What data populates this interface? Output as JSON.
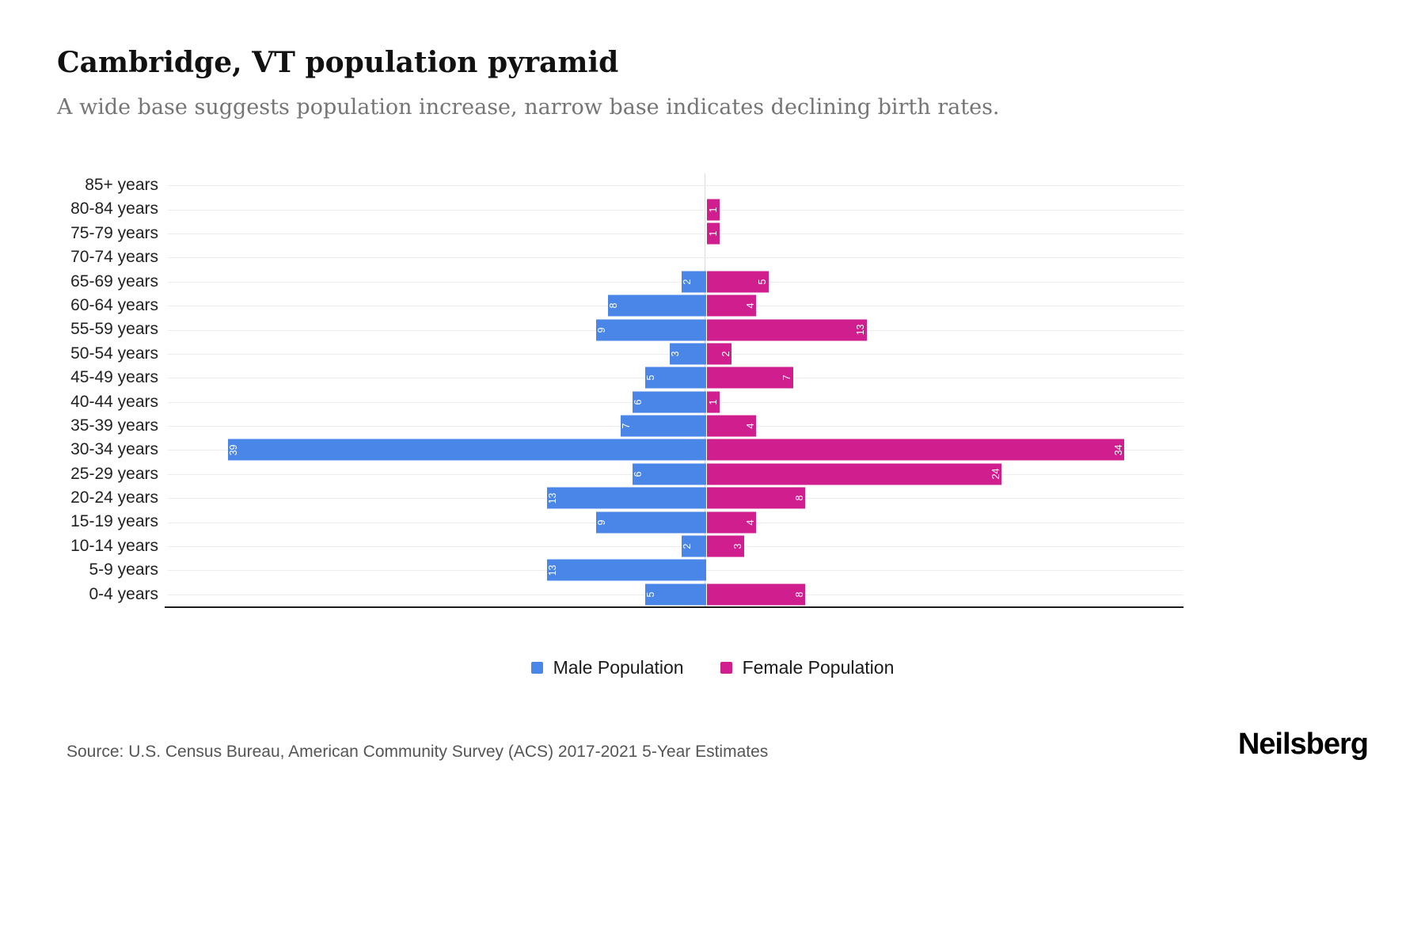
{
  "chart_data": {
    "type": "bar",
    "subtype": "population-pyramid",
    "orientation": "horizontal",
    "title": "Cambridge, VT population pyramid",
    "subtitle": "A wide base suggests population increase, narrow base indicates declining birth rates.",
    "categories": [
      "85+ years",
      "80-84 years",
      "75-79 years",
      "70-74 years",
      "65-69 years",
      "60-64 years",
      "55-59 years",
      "50-54 years",
      "45-49 years",
      "40-44 years",
      "35-39 years",
      "30-34 years",
      "25-29 years",
      "20-24 years",
      "15-19 years",
      "10-14 years",
      "5-9 years",
      "0-4 years"
    ],
    "series": [
      {
        "name": "Male Population",
        "color": "#4a86e8",
        "values": [
          0,
          0,
          0,
          0,
          2,
          8,
          9,
          3,
          5,
          6,
          7,
          39,
          6,
          13,
          9,
          2,
          13,
          5
        ]
      },
      {
        "name": "Female Population",
        "color": "#d01e8f",
        "values": [
          0,
          1,
          1,
          0,
          5,
          4,
          13,
          2,
          7,
          1,
          4,
          34,
          24,
          8,
          4,
          3,
          0,
          8
        ]
      }
    ],
    "legend_position": "bottom",
    "grid": "horizontal-light",
    "source": "Source: U.S. Census Bureau, American Community Survey (ACS) 2017-2021 5-Year Estimates",
    "brand": "Neilsberg"
  }
}
